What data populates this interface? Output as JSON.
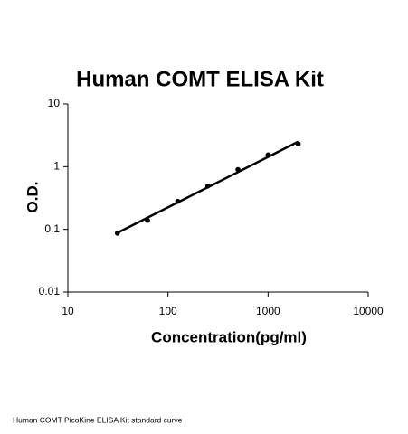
{
  "chart_data": {
    "type": "scatter",
    "title": "Human COMT ELISA Kit",
    "x_label": "Concentration(pg/ml)",
    "y_label": "O.D.",
    "caption": "Human COMT PicoKine ELISA Kit standard curve",
    "x": [
      31.25,
      62.5,
      125,
      250,
      500,
      1000,
      2000
    ],
    "values": [
      0.087,
      0.139,
      0.28,
      0.49,
      0.9,
      1.54,
      2.3
    ],
    "fit": {
      "x": [
        31.25,
        2000
      ],
      "values": [
        0.088,
        2.5
      ]
    },
    "color": "#000000",
    "xlog": true,
    "ylog": true,
    "xlim": [
      10,
      10000
    ],
    "ylim": [
      0.01,
      10
    ],
    "xticks": [
      10,
      100,
      1000,
      10000
    ],
    "yticks": [
      0.01,
      0.1,
      1,
      10
    ]
  }
}
